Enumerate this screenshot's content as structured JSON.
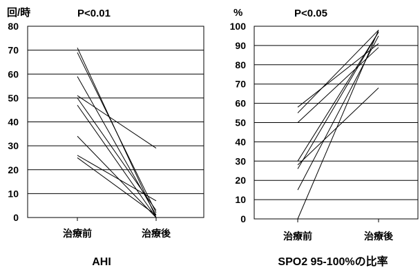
{
  "chart_data": [
    {
      "type": "line",
      "categories": [
        "治療前",
        "治療後"
      ],
      "unit": "回/時",
      "annotation": "P<0.01",
      "caption": "AHI",
      "ylim": [
        0,
        80
      ],
      "yticks": [
        0,
        10,
        20,
        30,
        40,
        50,
        60,
        70,
        80
      ],
      "grid": true,
      "series": [
        {
          "values": [
            71,
            0
          ]
        },
        {
          "values": [
            69,
            2
          ]
        },
        {
          "values": [
            59,
            1
          ]
        },
        {
          "values": [
            51,
            29
          ]
        },
        {
          "values": [
            50,
            3
          ]
        },
        {
          "values": [
            47,
            0
          ]
        },
        {
          "values": [
            34,
            0
          ]
        },
        {
          "values": [
            26,
            7
          ]
        },
        {
          "values": [
            25,
            1
          ]
        }
      ]
    },
    {
      "type": "line",
      "categories": [
        "治療前",
        "治療後"
      ],
      "unit": "%",
      "annotation": "P<0.05",
      "caption": "SPO2 95-100%の比率",
      "ylim": [
        0,
        100
      ],
      "yticks": [
        0,
        10,
        20,
        30,
        40,
        50,
        60,
        70,
        80,
        90,
        100
      ],
      "grid": true,
      "series": [
        {
          "values": [
            58,
            91
          ]
        },
        {
          "values": [
            55,
            98
          ]
        },
        {
          "values": [
            50,
            89
          ]
        },
        {
          "values": [
            30,
            97
          ]
        },
        {
          "values": [
            28,
            68
          ]
        },
        {
          "values": [
            26,
            97
          ]
        },
        {
          "values": [
            15,
            95
          ]
        },
        {
          "values": [
            0,
            98
          ]
        }
      ]
    }
  ]
}
